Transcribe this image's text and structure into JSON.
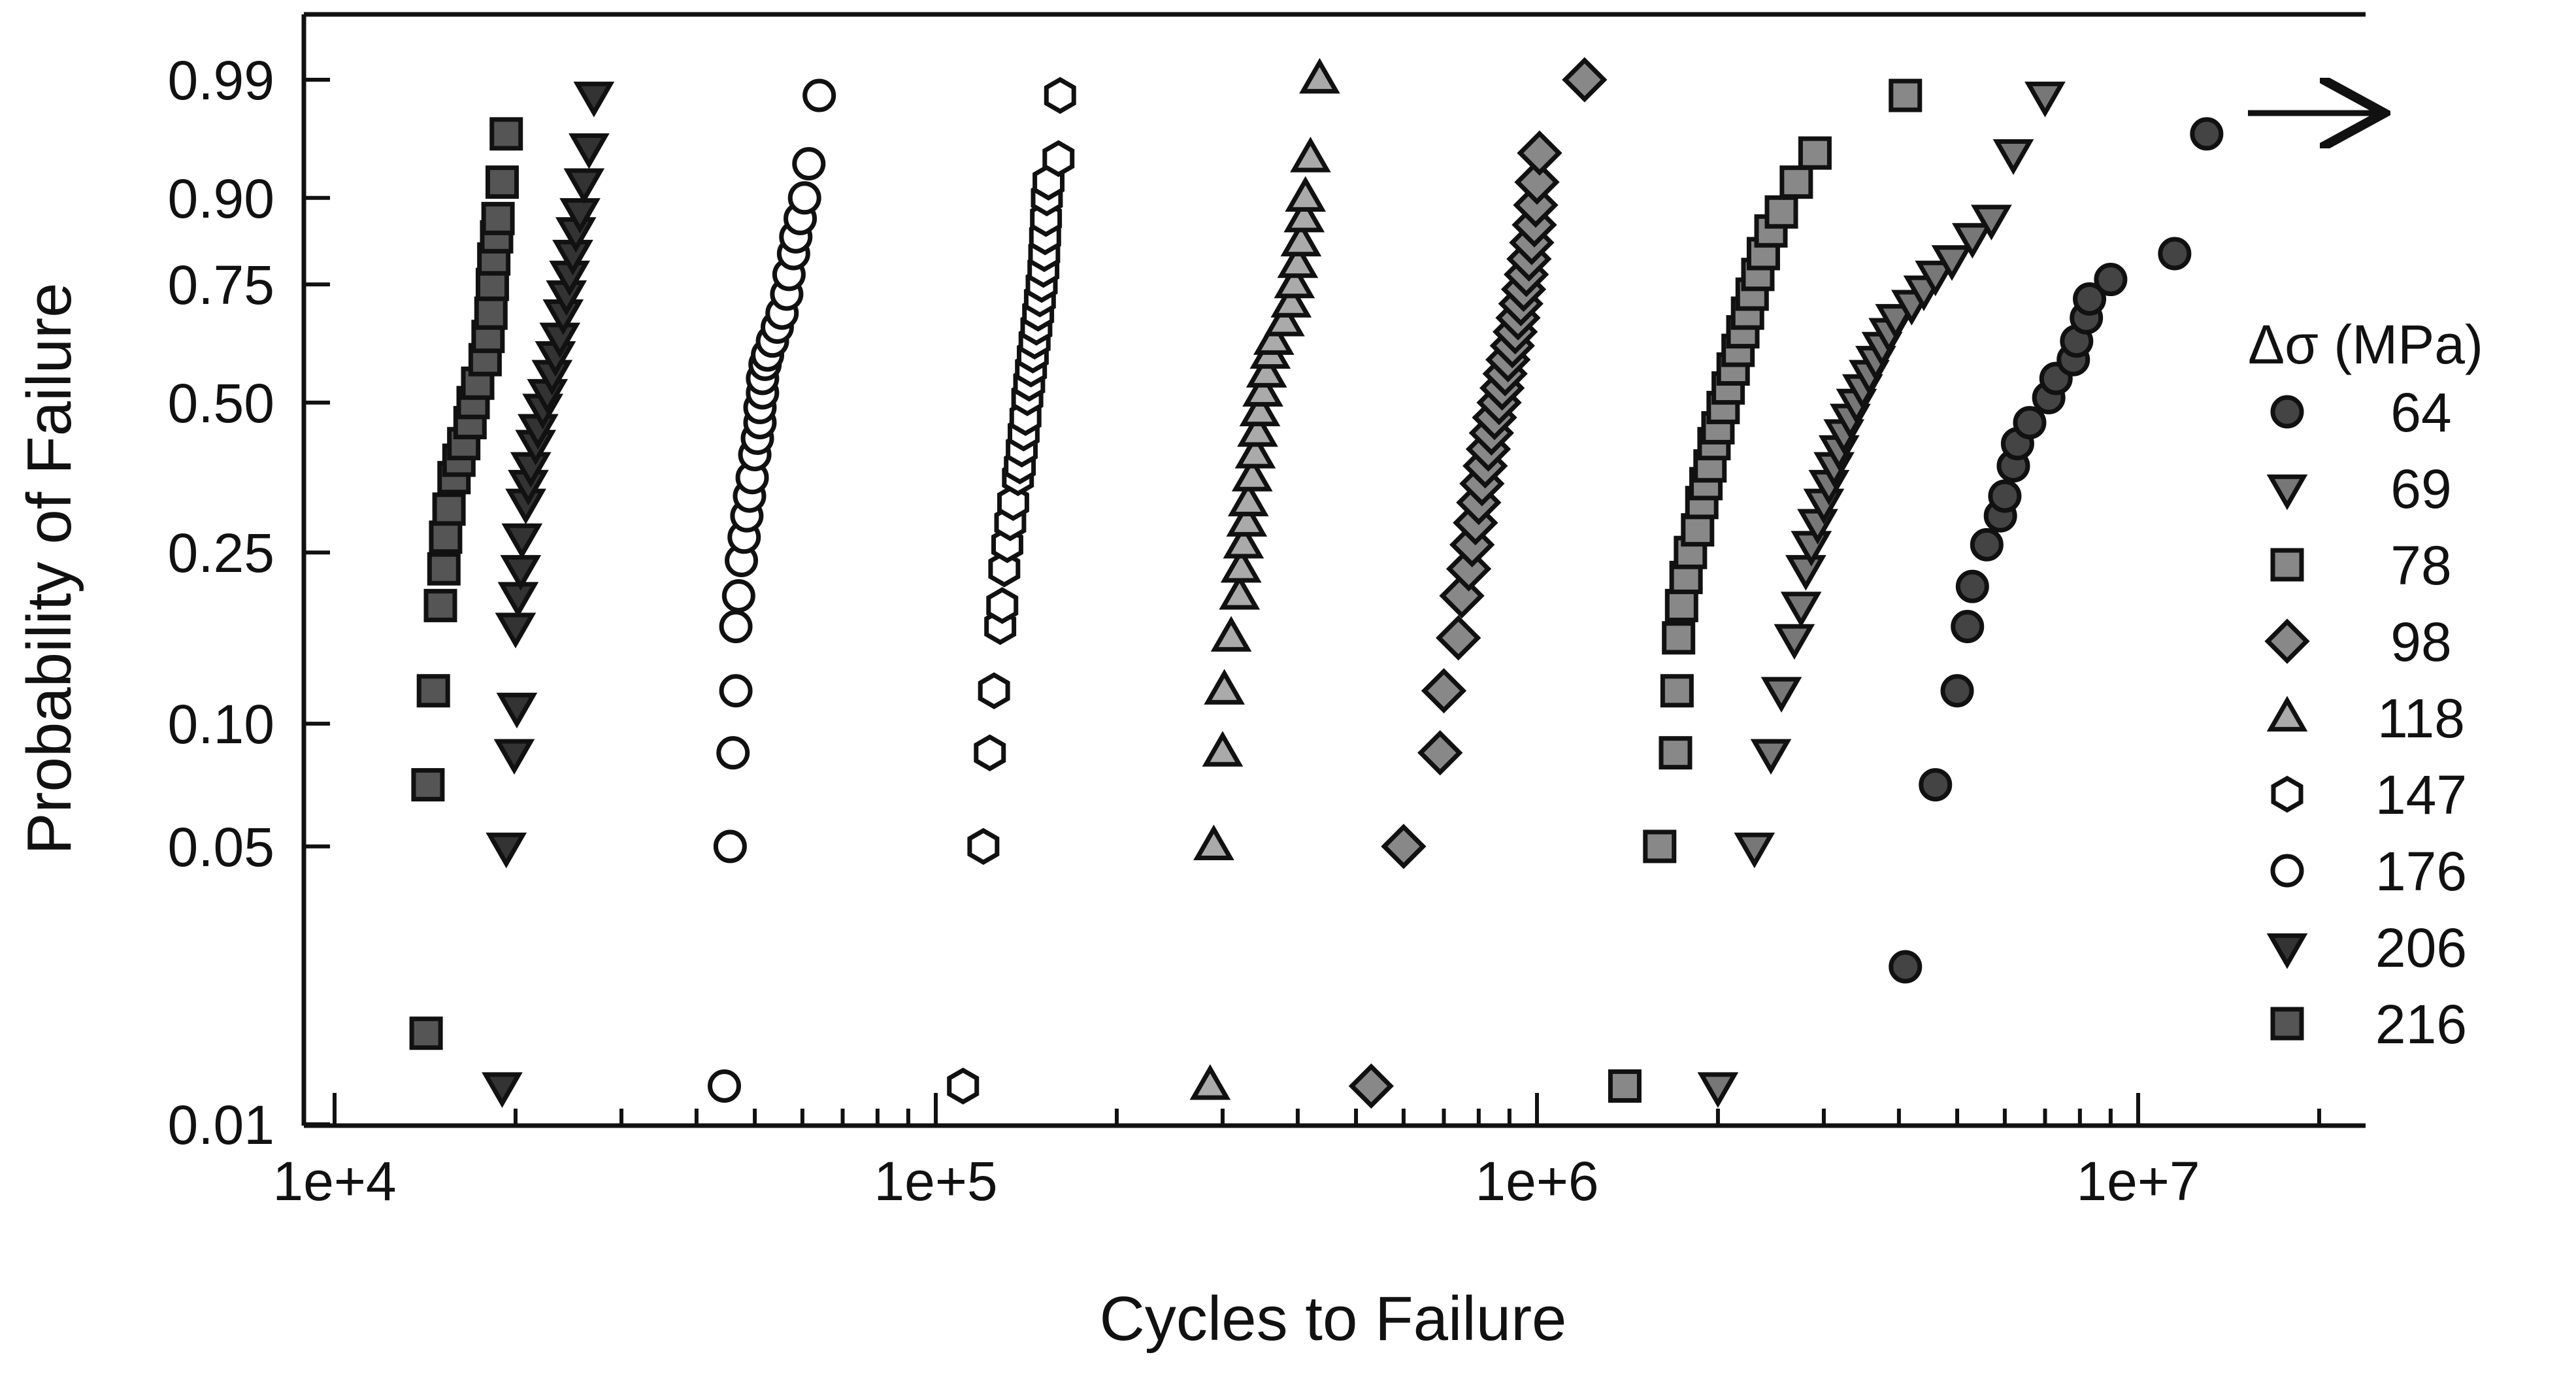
{
  "chart_data": {
    "type": "scatter",
    "title": "",
    "xlabel": "Cycles to Failure",
    "ylabel": "Probability of Failure",
    "x_scale": "log",
    "y_scale": "weibull",
    "xlim": [
      8500,
      25000000
    ],
    "ylim": [
      0.01,
      0.99
    ],
    "x_ticks": [
      10000,
      100000,
      1000000,
      10000000
    ],
    "x_tick_labels": [
      "1e+4",
      "1e+5",
      "1e+6",
      "1e+7"
    ],
    "y_ticks": [
      0.01,
      0.05,
      0.1,
      0.25,
      0.5,
      0.75,
      0.9,
      0.99
    ],
    "y_tick_labels": [
      "0.01",
      "0.05",
      "0.10",
      "0.25",
      "0.50",
      "0.75",
      "0.90",
      "0.99"
    ],
    "grid": false,
    "legend": {
      "title": "Δσ (MPa)",
      "placement": "right"
    },
    "annotation": "right arrow: run-out (unfailed) specimen at 64 MPa",
    "series": [
      {
        "name": "216",
        "marker": "square",
        "fill": "#555555",
        "points": [
          [
            14200,
            0.017
          ],
          [
            14300,
            0.071
          ],
          [
            14600,
            0.12
          ],
          [
            15000,
            0.19
          ],
          [
            15200,
            0.23
          ],
          [
            15300,
            0.27
          ],
          [
            15500,
            0.31
          ],
          [
            15800,
            0.36
          ],
          [
            16100,
            0.39
          ],
          [
            16400,
            0.42
          ],
          [
            16800,
            0.46
          ],
          [
            17000,
            0.5
          ],
          [
            17300,
            0.54
          ],
          [
            17800,
            0.59
          ],
          [
            18000,
            0.64
          ],
          [
            18200,
            0.69
          ],
          [
            18300,
            0.75
          ],
          [
            18400,
            0.8
          ],
          [
            18600,
            0.84
          ],
          [
            18700,
            0.87
          ],
          [
            19000,
            0.92
          ],
          [
            19300,
            0.965
          ]
        ]
      },
      {
        "name": "206",
        "marker": "triangle-down",
        "fill": "#333333",
        "points": [
          [
            19000,
            0.0125
          ],
          [
            19300,
            0.05
          ],
          [
            19900,
            0.085
          ],
          [
            20100,
            0.11
          ],
          [
            20000,
            0.17
          ],
          [
            20200,
            0.2
          ],
          [
            20400,
            0.23
          ],
          [
            20500,
            0.27
          ],
          [
            20800,
            0.32
          ],
          [
            21000,
            0.35
          ],
          [
            21200,
            0.38
          ],
          [
            21600,
            0.42
          ],
          [
            21800,
            0.45
          ],
          [
            22200,
            0.49
          ],
          [
            22600,
            0.52
          ],
          [
            23000,
            0.56
          ],
          [
            23300,
            0.6
          ],
          [
            23700,
            0.64
          ],
          [
            24000,
            0.69
          ],
          [
            24300,
            0.73
          ],
          [
            24600,
            0.77
          ],
          [
            24900,
            0.81
          ],
          [
            25200,
            0.85
          ],
          [
            25600,
            0.88
          ],
          [
            26000,
            0.92
          ],
          [
            26500,
            0.955
          ],
          [
            27000,
            0.985
          ]
        ]
      },
      {
        "name": "176",
        "marker": "circle-open",
        "fill": "#ffffff",
        "points": [
          [
            44500,
            0.0125
          ],
          [
            45500,
            0.05
          ],
          [
            46000,
            0.085
          ],
          [
            46500,
            0.12
          ],
          [
            46500,
            0.17
          ],
          [
            47000,
            0.2
          ],
          [
            47500,
            0.24
          ],
          [
            48000,
            0.27
          ],
          [
            48500,
            0.3
          ],
          [
            49000,
            0.33
          ],
          [
            49500,
            0.36
          ],
          [
            50000,
            0.4
          ],
          [
            50500,
            0.43
          ],
          [
            51000,
            0.46
          ],
          [
            51000,
            0.49
          ],
          [
            51500,
            0.52
          ],
          [
            51500,
            0.55
          ],
          [
            52000,
            0.58
          ],
          [
            52500,
            0.6
          ],
          [
            53500,
            0.63
          ],
          [
            54500,
            0.66
          ],
          [
            55500,
            0.69
          ],
          [
            56500,
            0.73
          ],
          [
            57000,
            0.77
          ],
          [
            58000,
            0.81
          ],
          [
            58500,
            0.84
          ],
          [
            59500,
            0.87
          ],
          [
            60500,
            0.9
          ],
          [
            61500,
            0.94
          ],
          [
            64000,
            0.985
          ]
        ]
      },
      {
        "name": "147",
        "marker": "hexagon-open",
        "fill": "#ffffff",
        "points": [
          [
            111000,
            0.0125
          ],
          [
            120000,
            0.05
          ],
          [
            123000,
            0.085
          ],
          [
            125000,
            0.12
          ],
          [
            128000,
            0.17
          ],
          [
            129000,
            0.19
          ],
          [
            130000,
            0.23
          ],
          [
            131500,
            0.26
          ],
          [
            133000,
            0.29
          ],
          [
            134500,
            0.32
          ],
          [
            137000,
            0.36
          ],
          [
            138000,
            0.38
          ],
          [
            139000,
            0.41
          ],
          [
            140000,
            0.44
          ],
          [
            141000,
            0.47
          ],
          [
            142000,
            0.51
          ],
          [
            143000,
            0.54
          ],
          [
            144000,
            0.57
          ],
          [
            145000,
            0.6
          ],
          [
            146000,
            0.63
          ],
          [
            147000,
            0.66
          ],
          [
            148000,
            0.69
          ],
          [
            149000,
            0.72
          ],
          [
            150000,
            0.75
          ],
          [
            151000,
            0.78
          ],
          [
            151500,
            0.81
          ],
          [
            152000,
            0.84
          ],
          [
            152500,
            0.87
          ],
          [
            153000,
            0.9
          ],
          [
            154000,
            0.92
          ],
          [
            160000,
            0.945
          ],
          [
            161000,
            0.985
          ]
        ]
      },
      {
        "name": "118",
        "marker": "triangle-up",
        "fill": "#aaaaaa",
        "points": [
          [
            286000,
            0.0125
          ],
          [
            290000,
            0.05
          ],
          [
            300000,
            0.085
          ],
          [
            302000,
            0.12
          ],
          [
            310000,
            0.16
          ],
          [
            320000,
            0.2
          ],
          [
            322000,
            0.23
          ],
          [
            325000,
            0.26
          ],
          [
            329000,
            0.29
          ],
          [
            331000,
            0.32
          ],
          [
            336000,
            0.36
          ],
          [
            340000,
            0.4
          ],
          [
            343000,
            0.44
          ],
          [
            346000,
            0.48
          ],
          [
            350000,
            0.52
          ],
          [
            355000,
            0.56
          ],
          [
            360000,
            0.6
          ],
          [
            365000,
            0.63
          ],
          [
            380000,
            0.67
          ],
          [
            390000,
            0.71
          ],
          [
            395000,
            0.75
          ],
          [
            400000,
            0.79
          ],
          [
            405000,
            0.83
          ],
          [
            410000,
            0.87
          ],
          [
            412000,
            0.9
          ],
          [
            420000,
            0.945
          ],
          [
            435000,
            0.99
          ]
        ]
      },
      {
        "name": "98",
        "marker": "diamond",
        "fill": "#888888",
        "points": [
          [
            530000,
            0.0125
          ],
          [
            600000,
            0.05
          ],
          [
            690000,
            0.085
          ],
          [
            700000,
            0.12
          ],
          [
            740000,
            0.16
          ],
          [
            750000,
            0.2
          ],
          [
            770000,
            0.23
          ],
          [
            780000,
            0.26
          ],
          [
            790000,
            0.29
          ],
          [
            800000,
            0.32
          ],
          [
            810000,
            0.35
          ],
          [
            820000,
            0.38
          ],
          [
            830000,
            0.41
          ],
          [
            840000,
            0.44
          ],
          [
            850000,
            0.47
          ],
          [
            865000,
            0.5
          ],
          [
            875000,
            0.53
          ],
          [
            885000,
            0.56
          ],
          [
            895000,
            0.59
          ],
          [
            910000,
            0.62
          ],
          [
            920000,
            0.65
          ],
          [
            930000,
            0.68
          ],
          [
            940000,
            0.71
          ],
          [
            950000,
            0.74
          ],
          [
            960000,
            0.77
          ],
          [
            970000,
            0.8
          ],
          [
            980000,
            0.83
          ],
          [
            990000,
            0.86
          ],
          [
            995000,
            0.89
          ],
          [
            1000000,
            0.92
          ],
          [
            1010000,
            0.95
          ],
          [
            1200000,
            0.99
          ]
        ]
      },
      {
        "name": "78",
        "marker": "square",
        "fill": "#888888",
        "points": [
          [
            1400000,
            0.0125
          ],
          [
            1600000,
            0.05
          ],
          [
            1700000,
            0.085
          ],
          [
            1710000,
            0.12
          ],
          [
            1720000,
            0.16
          ],
          [
            1740000,
            0.19
          ],
          [
            1770000,
            0.22
          ],
          [
            1800000,
            0.25
          ],
          [
            1850000,
            0.28
          ],
          [
            1880000,
            0.32
          ],
          [
            1910000,
            0.35
          ],
          [
            1940000,
            0.38
          ],
          [
            1970000,
            0.42
          ],
          [
            2000000,
            0.45
          ],
          [
            2040000,
            0.49
          ],
          [
            2080000,
            0.53
          ],
          [
            2120000,
            0.57
          ],
          [
            2160000,
            0.61
          ],
          [
            2200000,
            0.65
          ],
          [
            2240000,
            0.69
          ],
          [
            2280000,
            0.73
          ],
          [
            2330000,
            0.77
          ],
          [
            2380000,
            0.81
          ],
          [
            2450000,
            0.85
          ],
          [
            2550000,
            0.88
          ],
          [
            2700000,
            0.92
          ],
          [
            2900000,
            0.95
          ],
          [
            4100000,
            0.985
          ]
        ]
      },
      {
        "name": "69",
        "marker": "triangle-down",
        "fill": "#777777",
        "points": [
          [
            2000000,
            0.0125
          ],
          [
            2300000,
            0.05
          ],
          [
            2450000,
            0.085
          ],
          [
            2550000,
            0.12
          ],
          [
            2680000,
            0.16
          ],
          [
            2750000,
            0.19
          ],
          [
            2800000,
            0.23
          ],
          [
            2860000,
            0.26
          ],
          [
            2930000,
            0.29
          ],
          [
            3000000,
            0.32
          ],
          [
            3060000,
            0.35
          ],
          [
            3120000,
            0.38
          ],
          [
            3180000,
            0.41
          ],
          [
            3240000,
            0.44
          ],
          [
            3320000,
            0.47
          ],
          [
            3400000,
            0.5
          ],
          [
            3480000,
            0.53
          ],
          [
            3570000,
            0.56
          ],
          [
            3660000,
            0.59
          ],
          [
            3750000,
            0.62
          ],
          [
            3850000,
            0.65
          ],
          [
            3950000,
            0.68
          ],
          [
            4200000,
            0.71
          ],
          [
            4400000,
            0.74
          ],
          [
            4600000,
            0.77
          ],
          [
            4900000,
            0.8
          ],
          [
            5300000,
            0.84
          ],
          [
            5700000,
            0.87
          ],
          [
            6200000,
            0.95
          ],
          [
            7000000,
            0.985
          ]
        ]
      },
      {
        "name": "64",
        "marker": "circle",
        "fill": "#444444",
        "points": [
          [
            4100000,
            0.025
          ],
          [
            4600000,
            0.071
          ],
          [
            5000000,
            0.12
          ],
          [
            5200000,
            0.17
          ],
          [
            5300000,
            0.21
          ],
          [
            5600000,
            0.26
          ],
          [
            5900000,
            0.3
          ],
          [
            6000000,
            0.33
          ],
          [
            6200000,
            0.38
          ],
          [
            6300000,
            0.42
          ],
          [
            6600000,
            0.46
          ],
          [
            7100000,
            0.51
          ],
          [
            7300000,
            0.55
          ],
          [
            7800000,
            0.59
          ],
          [
            7900000,
            0.63
          ],
          [
            8200000,
            0.68
          ],
          [
            8300000,
            0.72
          ],
          [
            9000000,
            0.76
          ],
          [
            11500000,
            0.81
          ],
          [
            13000000,
            0.965
          ]
        ]
      }
    ]
  }
}
